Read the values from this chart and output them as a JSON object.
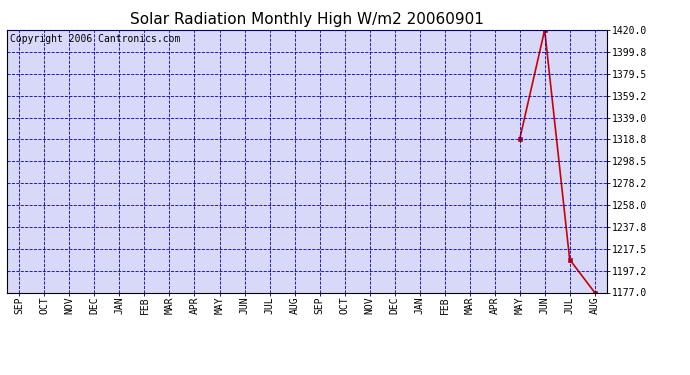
{
  "title": "Solar Radiation Monthly High W/m2 20060901",
  "copyright_text": "Copyright 2006 Cantronics.com",
  "x_labels": [
    "SEP",
    "OCT",
    "NOV",
    "DEC",
    "JAN",
    "FEB",
    "MAR",
    "APR",
    "MAY",
    "JUN",
    "JUL",
    "AUG",
    "SEP",
    "OCT",
    "NOV",
    "DEC",
    "JAN",
    "FEB",
    "MAR",
    "APR",
    "MAY",
    "JUN",
    "JUL",
    "AUG"
  ],
  "y_values": [
    null,
    null,
    null,
    null,
    null,
    null,
    null,
    null,
    null,
    null,
    null,
    null,
    null,
    null,
    null,
    null,
    null,
    null,
    null,
    null,
    1318.8,
    1420.0,
    1207.5,
    1177.0
  ],
  "ylim_min": 1177.0,
  "ylim_max": 1420.0,
  "ytick_values": [
    1177.0,
    1197.2,
    1217.5,
    1237.8,
    1258.0,
    1278.2,
    1298.5,
    1318.8,
    1339.0,
    1359.2,
    1379.5,
    1399.8,
    1420.0
  ],
  "line_color": "#cc0000",
  "marker_color": "#cc0000",
  "grid_color": "#0000bb",
  "plot_bg_color": "#d8d8f8",
  "title_fontsize": 11,
  "copyright_fontsize": 7,
  "tick_fontsize": 7
}
